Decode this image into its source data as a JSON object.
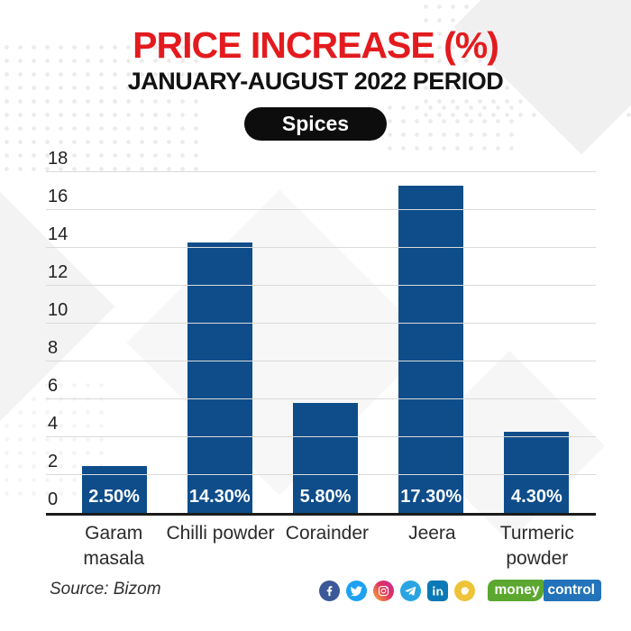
{
  "header": {
    "title": "PRICE INCREASE (%)",
    "subtitle": "JANUARY-AUGUST 2022 PERIOD",
    "badge": "Spices"
  },
  "chart_data": {
    "type": "bar",
    "title": "PRICE INCREASE (%)",
    "subtitle": "JANUARY-AUGUST 2022 PERIOD",
    "group": "Spices",
    "categories": [
      "Garam\nmasala",
      "Chilli powder",
      "Corainder",
      "Jeera",
      "Turmeric\npowder"
    ],
    "values": [
      2.5,
      14.3,
      5.8,
      17.3,
      4.3
    ],
    "bar_labels": [
      "2.50%",
      "14.30%",
      "5.80%",
      "17.30%",
      "4.30%"
    ],
    "xlabel": "",
    "ylabel": "",
    "ylim": [
      0,
      18
    ],
    "ytick_step": 2,
    "grid": true,
    "legend": false,
    "bar_color": "#0e4d8a"
  },
  "footer": {
    "source": "Source: Bizom",
    "social": [
      {
        "name": "facebook",
        "color": "#3b5998"
      },
      {
        "name": "twitter",
        "color": "#1da1f2"
      },
      {
        "name": "instagram",
        "color": "#d6366c",
        "gradient": "linear-gradient(50deg,#f7b23b,#e0315c 55%,#c32aa3)"
      },
      {
        "name": "telegram",
        "color": "#29a4e2"
      },
      {
        "name": "linkedin",
        "color": "#0b79b5"
      },
      {
        "name": "koo",
        "color": "#eec339"
      }
    ],
    "logo": {
      "part1": "money",
      "part2": "control",
      "color1": "#5ba72f",
      "color2": "#2273b9"
    }
  },
  "colors": {
    "title_red": "#e31b1e",
    "bar_blue": "#0e4d8a",
    "badge_black": "#0d0d0d"
  }
}
